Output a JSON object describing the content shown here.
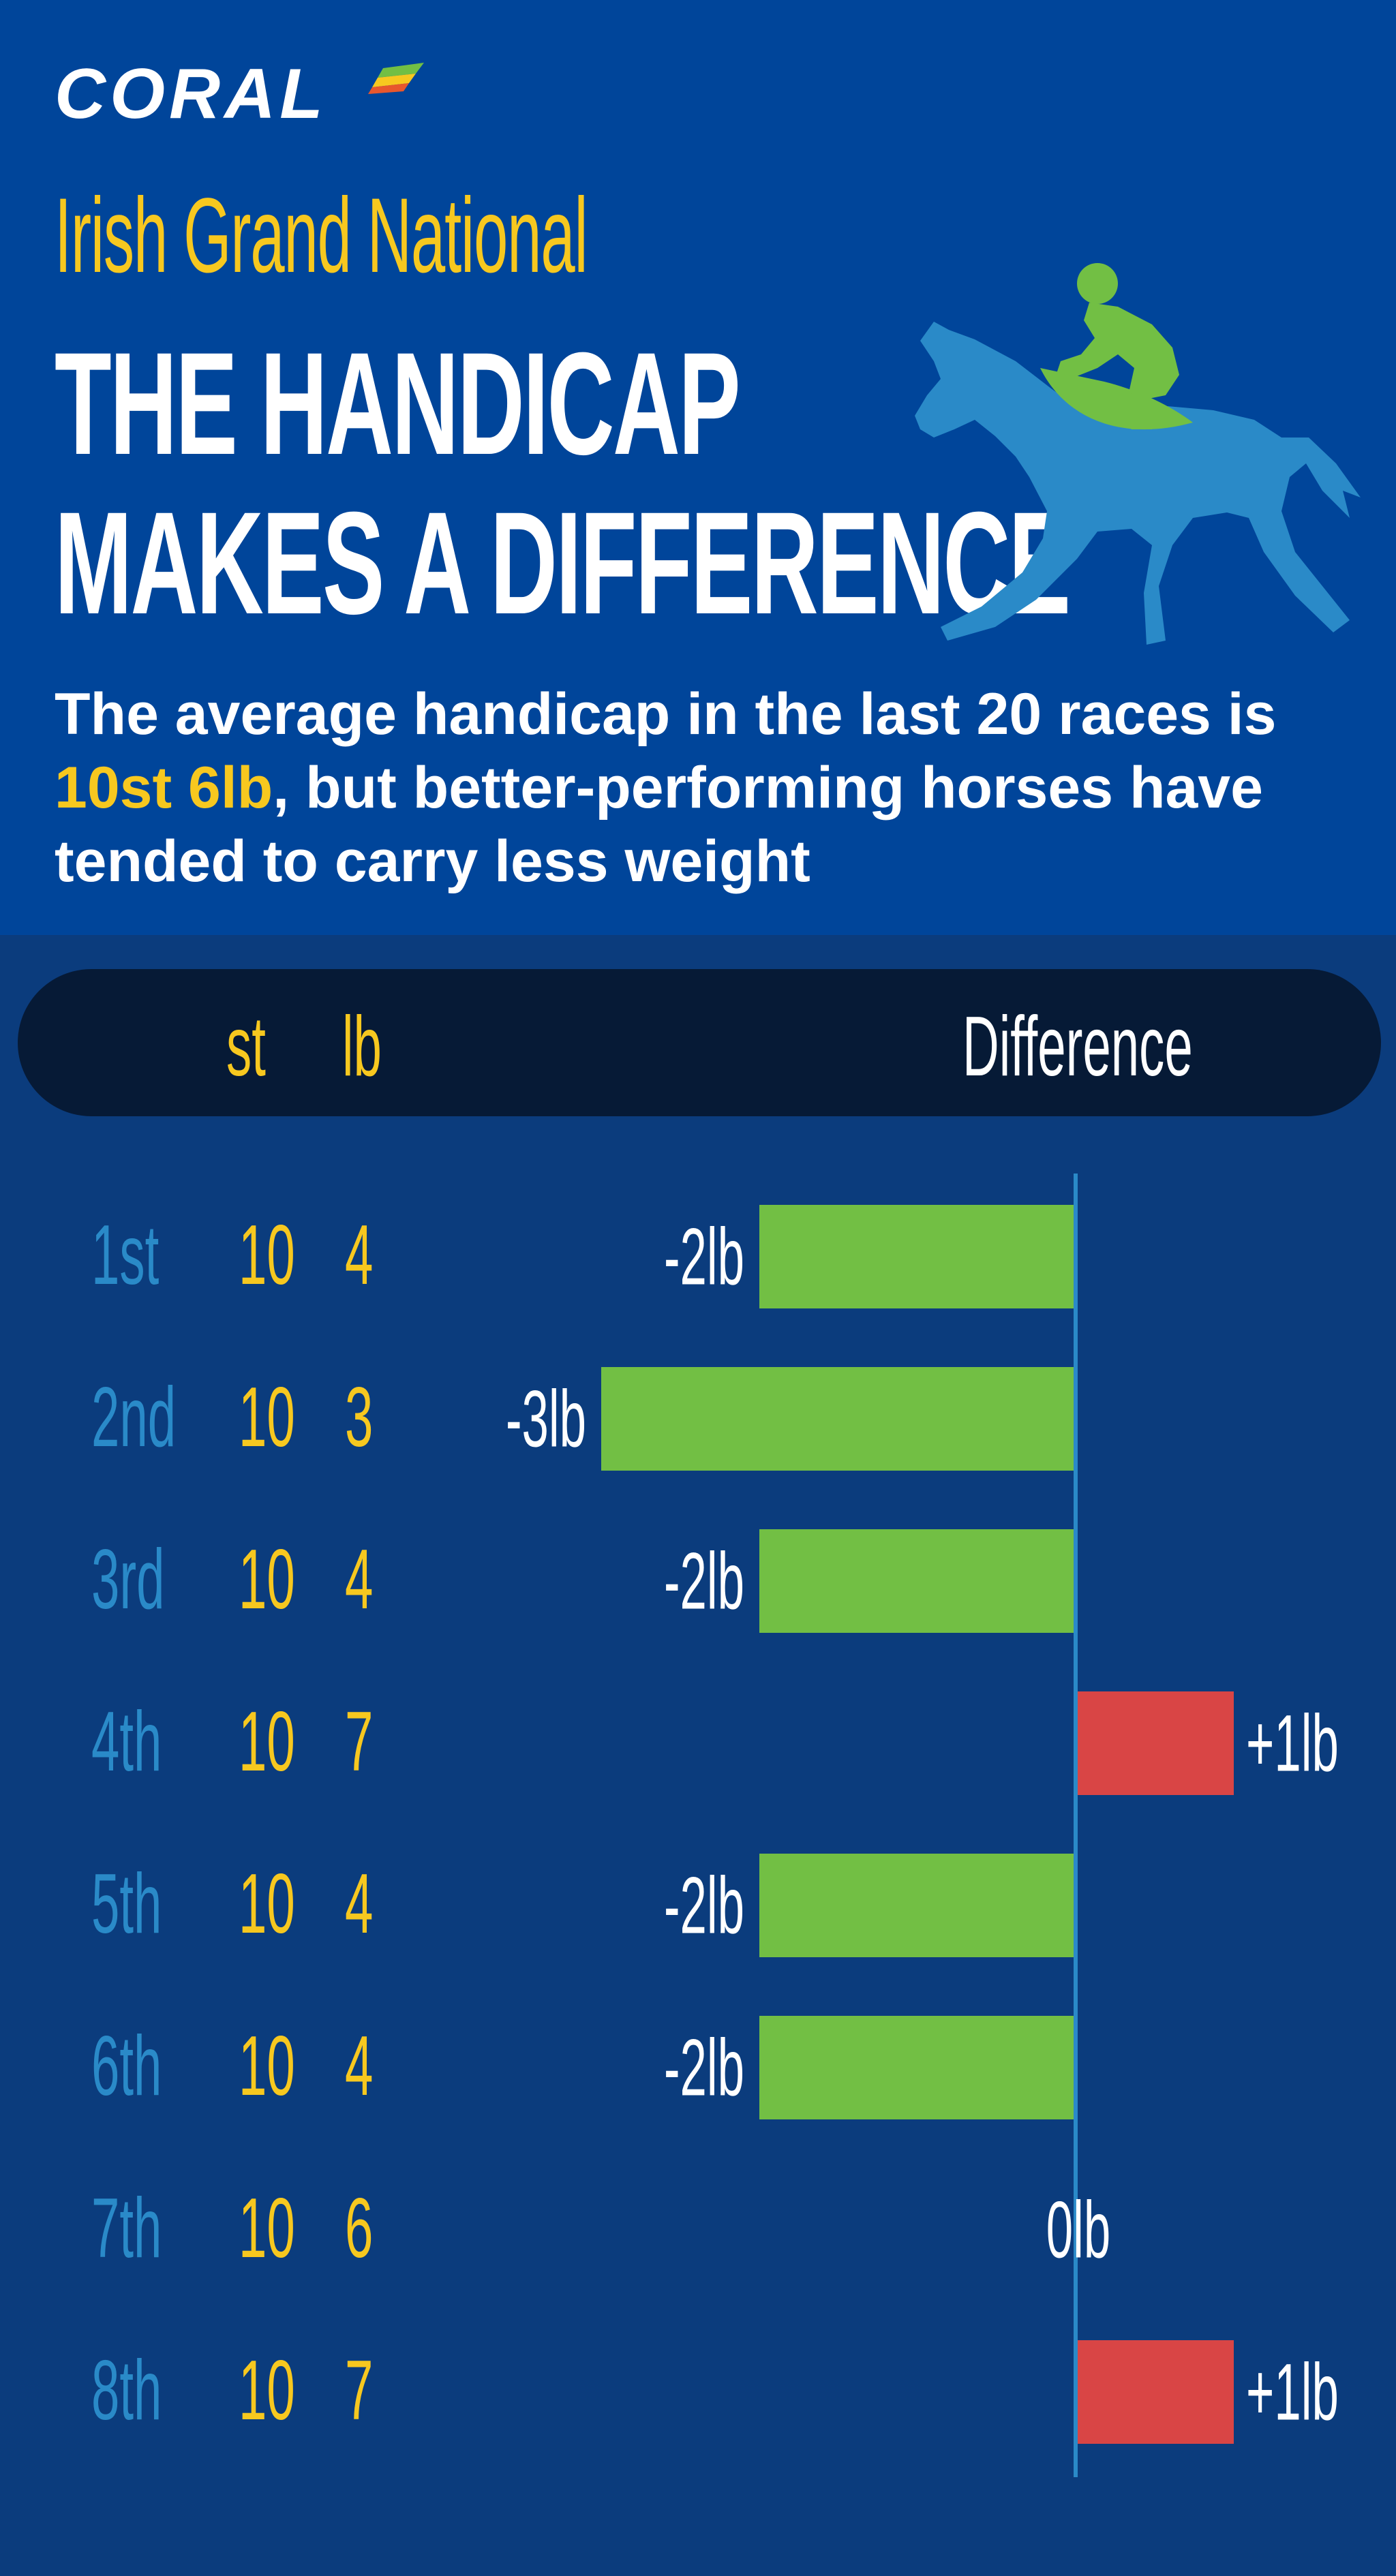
{
  "brand": {
    "name": "CORAL",
    "colors": {
      "header_bg": "#00459a",
      "body_bg": "#0b3c7d",
      "accent": "#f7c81f",
      "green": "#72bf44",
      "red": "#d94545",
      "position_text": "#2a8ac8"
    }
  },
  "header": {
    "event": "Irish Grand National",
    "headline_line1": "THE HANDICAP",
    "headline_line2": "MAKES A DIFFERENCE",
    "intro_before": "The average handicap in the last 20 races is ",
    "intro_highlight": "10st 6lb",
    "intro_after": ", but better-performing horses have tended to carry less weight",
    "illustration": "horse-and-jockey-icon"
  },
  "columns": {
    "st": "st",
    "lb": "lb",
    "difference": "Difference"
  },
  "chart_data": {
    "type": "bar",
    "orientation": "horizontal",
    "baseline_label": "10st 6lb",
    "categories": [
      "1st",
      "2nd",
      "3rd",
      "4th",
      "5th",
      "6th",
      "7th",
      "8th"
    ],
    "st": [
      "10",
      "10",
      "10",
      "10",
      "10",
      "10",
      "10",
      "10"
    ],
    "lb": [
      "4",
      "3",
      "4",
      "7",
      "4",
      "4",
      "6",
      "7"
    ],
    "values": [
      -2,
      -3,
      -2,
      1,
      -2,
      -2,
      0,
      1
    ],
    "labels": [
      "-2lb",
      "-3lb",
      "-2lb",
      "+1lb",
      "-2lb",
      "-2lb",
      "0lb",
      "+1lb"
    ],
    "colors": {
      "negative": "#72bf44",
      "positive": "#d94545"
    },
    "unit": "lb"
  }
}
